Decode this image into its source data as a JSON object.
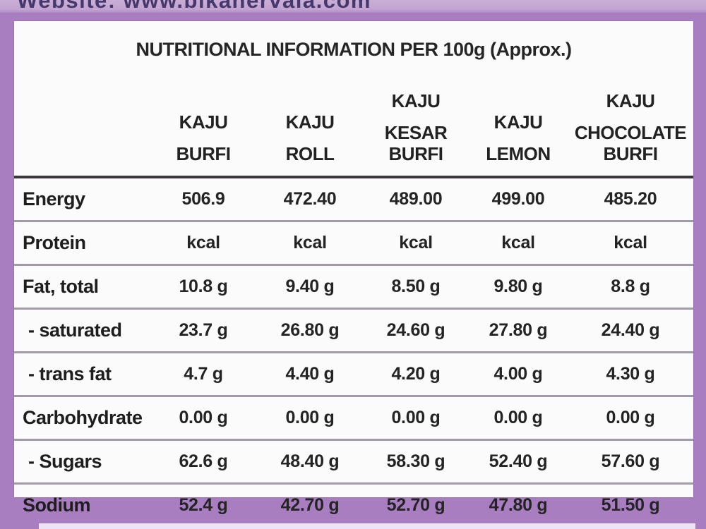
{
  "page": {
    "top_text": "Website: www.bikanervala.com"
  },
  "colors": {
    "frame_purple": "#a87ec1",
    "lavender_strip": "#c3a4d1",
    "panel_background": "#fcfbfb",
    "text_dark": "#242424",
    "website_text": "#45386b"
  },
  "table": {
    "title": "NUTRITIONAL INFORMATION PER 100g (Approx.)",
    "columns": [
      {
        "line1": "KAJU",
        "line2": "BURFI"
      },
      {
        "line1": "KAJU",
        "line2": "ROLL"
      },
      {
        "line1": "KAJU",
        "line2": "KESAR BURFI"
      },
      {
        "line1": "KAJU",
        "line2": "LEMON"
      },
      {
        "line1": "KAJU",
        "line2": "CHOCOLATE BURFI"
      }
    ],
    "rows": [
      {
        "label": "Energy",
        "values": [
          "506.9",
          "472.40",
          "489.00",
          "499.00",
          "485.20"
        ]
      },
      {
        "label": "Protein",
        "values": [
          "kcal",
          "kcal",
          "kcal",
          "kcal",
          "kcal"
        ]
      },
      {
        "label": "Fat, total",
        "values": [
          "10.8 g",
          "9.40 g",
          "8.50 g",
          "9.80 g",
          "8.8 g"
        ]
      },
      {
        "label": "- saturated",
        "values": [
          "23.7 g",
          "26.80 g",
          "24.60 g",
          "27.80 g",
          "24.40 g"
        ]
      },
      {
        "label": "- trans fat",
        "values": [
          "4.7 g",
          "4.40 g",
          "4.20 g",
          "4.00 g",
          "4.30 g"
        ]
      },
      {
        "label": "Carbohydrate",
        "values": [
          "0.00 g",
          "0.00 g",
          "0.00 g",
          "0.00 g",
          "0.00 g"
        ]
      },
      {
        "label": "- Sugars",
        "values": [
          "62.6 g",
          "48.40 g",
          "58.30 g",
          "52.40 g",
          "57.60 g"
        ]
      },
      {
        "label": "Sodium",
        "values": [
          "52.4 g",
          "42.70 g",
          "52.70 g",
          "47.80 g",
          "51.50 g"
        ]
      }
    ]
  }
}
